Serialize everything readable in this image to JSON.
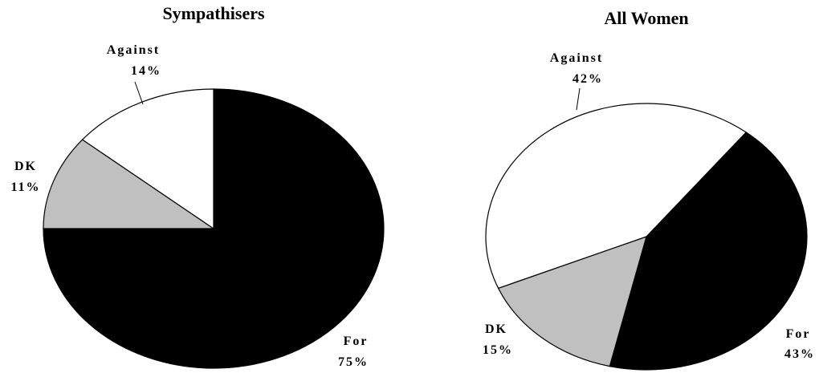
{
  "chart_data": [
    {
      "type": "pie",
      "title": "Sympathisers",
      "slices": [
        {
          "label": "For",
          "value": 75,
          "value_label": "75%",
          "color": "#000000"
        },
        {
          "label": "DK",
          "value": 11,
          "value_label": "11%",
          "color": "#c0c0c0"
        },
        {
          "label": "Against",
          "value": 14,
          "value_label": "14%",
          "color": "#ffffff"
        }
      ]
    },
    {
      "type": "pie",
      "title": "All Women",
      "slices": [
        {
          "label": "For",
          "value": 43,
          "value_label": "43%",
          "color": "#000000"
        },
        {
          "label": "DK",
          "value": 15,
          "value_label": "15%",
          "color": "#c0c0c0"
        },
        {
          "label": "Against",
          "value": 42,
          "value_label": "42%",
          "color": "#ffffff"
        }
      ]
    }
  ]
}
